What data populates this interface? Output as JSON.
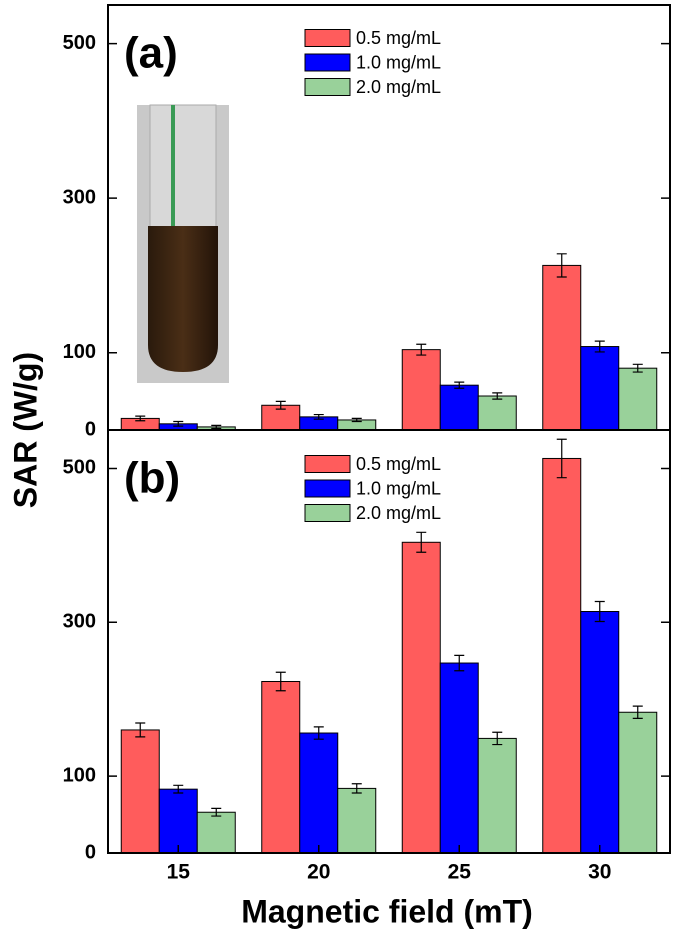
{
  "chart_data": [
    {
      "type": "bar",
      "annotation": "(a)",
      "y_label": "SAR (W/g)",
      "ylim": [
        0,
        550
      ],
      "yticks": [
        0,
        100,
        300,
        500
      ],
      "series": [
        {
          "name": "0.5 mg/mL",
          "color": "#ff5c5c",
          "values": [
            15,
            32,
            104,
            213
          ],
          "errors": [
            3,
            5,
            7,
            15
          ]
        },
        {
          "name": "1.0 mg/mL",
          "color": "#0000ff",
          "values": [
            8,
            17,
            58,
            108
          ],
          "errors": [
            3,
            3,
            4,
            7
          ]
        },
        {
          "name": "2.0 mg/mL",
          "color": "#99d19a",
          "values": [
            4,
            13,
            44,
            80
          ],
          "errors": [
            2,
            2,
            4,
            5
          ]
        }
      ]
    },
    {
      "type": "bar",
      "annotation": "(b)",
      "x_label": "Magnetic field (mT)",
      "categories": [
        "15",
        "20",
        "25",
        "30"
      ],
      "ylim": [
        0,
        550
      ],
      "yticks": [
        0,
        100,
        300,
        500
      ],
      "series": [
        {
          "name": "0.5 mg/mL",
          "color": "#ff5c5c",
          "values": [
            160,
            223,
            404,
            513
          ],
          "errors": [
            9,
            12,
            13,
            25
          ]
        },
        {
          "name": "1.0 mg/mL",
          "color": "#0000ff",
          "values": [
            83,
            156,
            247,
            314
          ],
          "errors": [
            5,
            8,
            10,
            13
          ]
        },
        {
          "name": "2.0 mg/mL",
          "color": "#99d19a",
          "values": [
            53,
            84,
            149,
            183
          ],
          "errors": [
            5,
            6,
            8,
            8
          ]
        }
      ]
    }
  ]
}
